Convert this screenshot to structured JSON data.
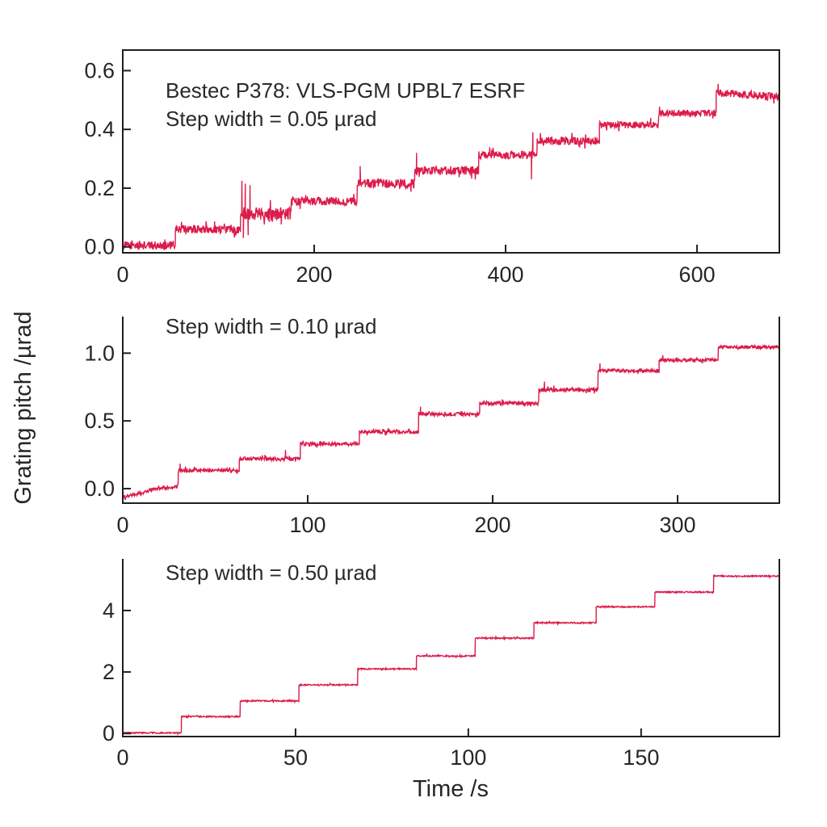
{
  "figure": {
    "ylabel": "Grating pitch /µrad",
    "xlabel": "Time /s",
    "trace_color": "#dc1b4a",
    "axis_color": "#1f1f1f",
    "text_color": "#2a2a2a",
    "background": "#ffffff"
  },
  "chart_data": [
    {
      "type": "line",
      "title": "Bestec P378: VLS-PGM UPBL7 ESRF",
      "annotations": [
        "Bestec P378: VLS-PGM UPBL7 ESRF",
        "Step width = 0.05 µrad"
      ],
      "step_width_urad": 0.05,
      "xlabel": "Time /s",
      "ylabel": "Grating pitch /µrad",
      "xlim": [
        0,
        686
      ],
      "ylim": [
        -0.02,
        0.67
      ],
      "xticks": [
        0,
        200,
        400,
        600
      ],
      "xtick_labels": [
        "0",
        "200",
        "400",
        "600"
      ],
      "yticks": [
        0.0,
        0.2,
        0.4,
        0.6
      ],
      "ytick_labels": [
        "0.0",
        "0.2",
        "0.4",
        "0.6"
      ],
      "grid": false,
      "legend": "none",
      "step_times_s": [
        55,
        123,
        176,
        245,
        305,
        372,
        433,
        498,
        560,
        620
      ],
      "levels_urad": [
        0.0,
        0.06,
        0.115,
        0.155,
        0.215,
        0.26,
        0.315,
        0.36,
        0.415,
        0.455,
        0.52
      ],
      "segments": [
        [
          0,
          55,
          0.005,
          0.005,
          0.014
        ],
        [
          55,
          123,
          0.06,
          0.06,
          0.014
        ],
        [
          123,
          176,
          0.115,
          0.115,
          0.022
        ],
        [
          176,
          245,
          0.155,
          0.155,
          0.014
        ],
        [
          245,
          305,
          0.215,
          0.215,
          0.016
        ],
        [
          305,
          372,
          0.26,
          0.26,
          0.015
        ],
        [
          372,
          433,
          0.313,
          0.313,
          0.014
        ],
        [
          433,
          498,
          0.36,
          0.36,
          0.014
        ],
        [
          498,
          560,
          0.415,
          0.415,
          0.012
        ],
        [
          560,
          620,
          0.455,
          0.455,
          0.012
        ],
        [
          620,
          686,
          0.525,
          0.51,
          0.013
        ]
      ],
      "spikes": [
        {
          "t": 124.5,
          "v": 0.225
        },
        {
          "t": 126,
          "v": 0.03
        },
        {
          "t": 128,
          "v": 0.215
        },
        {
          "t": 131,
          "v": 0.04
        },
        {
          "t": 133,
          "v": 0.21
        },
        {
          "t": 248,
          "v": 0.275
        },
        {
          "t": 307,
          "v": 0.32
        },
        {
          "t": 427,
          "v": 0.23
        },
        {
          "t": 428.5,
          "v": 0.39
        },
        {
          "t": 622,
          "v": 0.555
        }
      ]
    },
    {
      "type": "line",
      "title": "Step width = 0.10 µrad",
      "annotations": [
        "Step width = 0.10 µrad"
      ],
      "step_width_urad": 0.1,
      "xlabel": "Time /s",
      "ylabel": "Grating pitch /µrad",
      "xlim": [
        0,
        355
      ],
      "ylim": [
        -0.107,
        1.27
      ],
      "xticks": [
        0,
        100,
        200,
        300
      ],
      "xtick_labels": [
        "0",
        "100",
        "200",
        "300"
      ],
      "yticks": [
        0.0,
        0.5,
        1.0
      ],
      "ytick_labels": [
        "0.0",
        "0.5",
        "1.0"
      ],
      "grid": false,
      "legend": "none",
      "step_times_s": [
        30,
        63,
        96,
        128,
        160,
        193,
        225,
        257,
        290,
        322
      ],
      "levels_urad": [
        0.0,
        0.135,
        0.22,
        0.33,
        0.42,
        0.55,
        0.63,
        0.73,
        0.87,
        0.95,
        1.045
      ],
      "segments": [
        [
          0,
          14,
          -0.065,
          -0.02,
          0.012
        ],
        [
          14,
          30,
          -0.01,
          0.015,
          0.012
        ],
        [
          30,
          63,
          0.135,
          0.135,
          0.013
        ],
        [
          63,
          96,
          0.22,
          0.22,
          0.015
        ],
        [
          96,
          128,
          0.33,
          0.33,
          0.013
        ],
        [
          128,
          160,
          0.42,
          0.42,
          0.013
        ],
        [
          160,
          193,
          0.55,
          0.55,
          0.013
        ],
        [
          193,
          225,
          0.63,
          0.63,
          0.014
        ],
        [
          225,
          257,
          0.73,
          0.73,
          0.015
        ],
        [
          257,
          290,
          0.87,
          0.87,
          0.013
        ],
        [
          290,
          322,
          0.95,
          0.95,
          0.012
        ],
        [
          322,
          357,
          1.045,
          1.045,
          0.012
        ]
      ],
      "spikes": [
        {
          "t": 31,
          "v": 0.185
        },
        {
          "t": 88,
          "v": 0.285
        },
        {
          "t": 161,
          "v": 0.605
        },
        {
          "t": 228,
          "v": 0.79
        },
        {
          "t": 258,
          "v": 0.925
        },
        {
          "t": 292,
          "v": 0.985
        }
      ]
    },
    {
      "type": "line",
      "title": "Step width = 0.50 µrad",
      "annotations": [
        "Step width = 0.50 µrad"
      ],
      "step_width_urad": 0.5,
      "xlabel": "Time /s",
      "ylabel": "Grating pitch /µrad",
      "xlim": [
        0,
        190
      ],
      "ylim": [
        -0.1,
        5.68
      ],
      "xticks": [
        0,
        50,
        100,
        150
      ],
      "xtick_labels": [
        "0",
        "50",
        "100",
        "150"
      ],
      "yticks": [
        0,
        2,
        4
      ],
      "ytick_labels": [
        "0",
        "2",
        "4"
      ],
      "grid": false,
      "legend": "none",
      "step_times_s": [
        17,
        34,
        51,
        68,
        85,
        102,
        119,
        137,
        154,
        171
      ],
      "levels_urad": [
        0.0,
        0.55,
        1.06,
        1.58,
        2.1,
        2.52,
        3.1,
        3.6,
        4.12,
        4.6,
        5.12
      ],
      "segments": [
        [
          0,
          17,
          0.02,
          0.02,
          0.02
        ],
        [
          17,
          34,
          0.55,
          0.55,
          0.02
        ],
        [
          34,
          51,
          1.06,
          1.06,
          0.02
        ],
        [
          51,
          68,
          1.58,
          1.58,
          0.02
        ],
        [
          68,
          85,
          2.1,
          2.1,
          0.02
        ],
        [
          85,
          102,
          2.52,
          2.52,
          0.02
        ],
        [
          102,
          119,
          3.1,
          3.1,
          0.02
        ],
        [
          119,
          137,
          3.6,
          3.6,
          0.02
        ],
        [
          137,
          154,
          4.12,
          4.12,
          0.02
        ],
        [
          154,
          171,
          4.6,
          4.6,
          0.02
        ],
        [
          171,
          190,
          5.12,
          5.12,
          0.02
        ]
      ],
      "spikes": [
        {
          "t": 60,
          "v": 1.65
        },
        {
          "t": 88,
          "v": 2.6
        },
        {
          "t": 120,
          "v": 3.66
        }
      ]
    }
  ]
}
